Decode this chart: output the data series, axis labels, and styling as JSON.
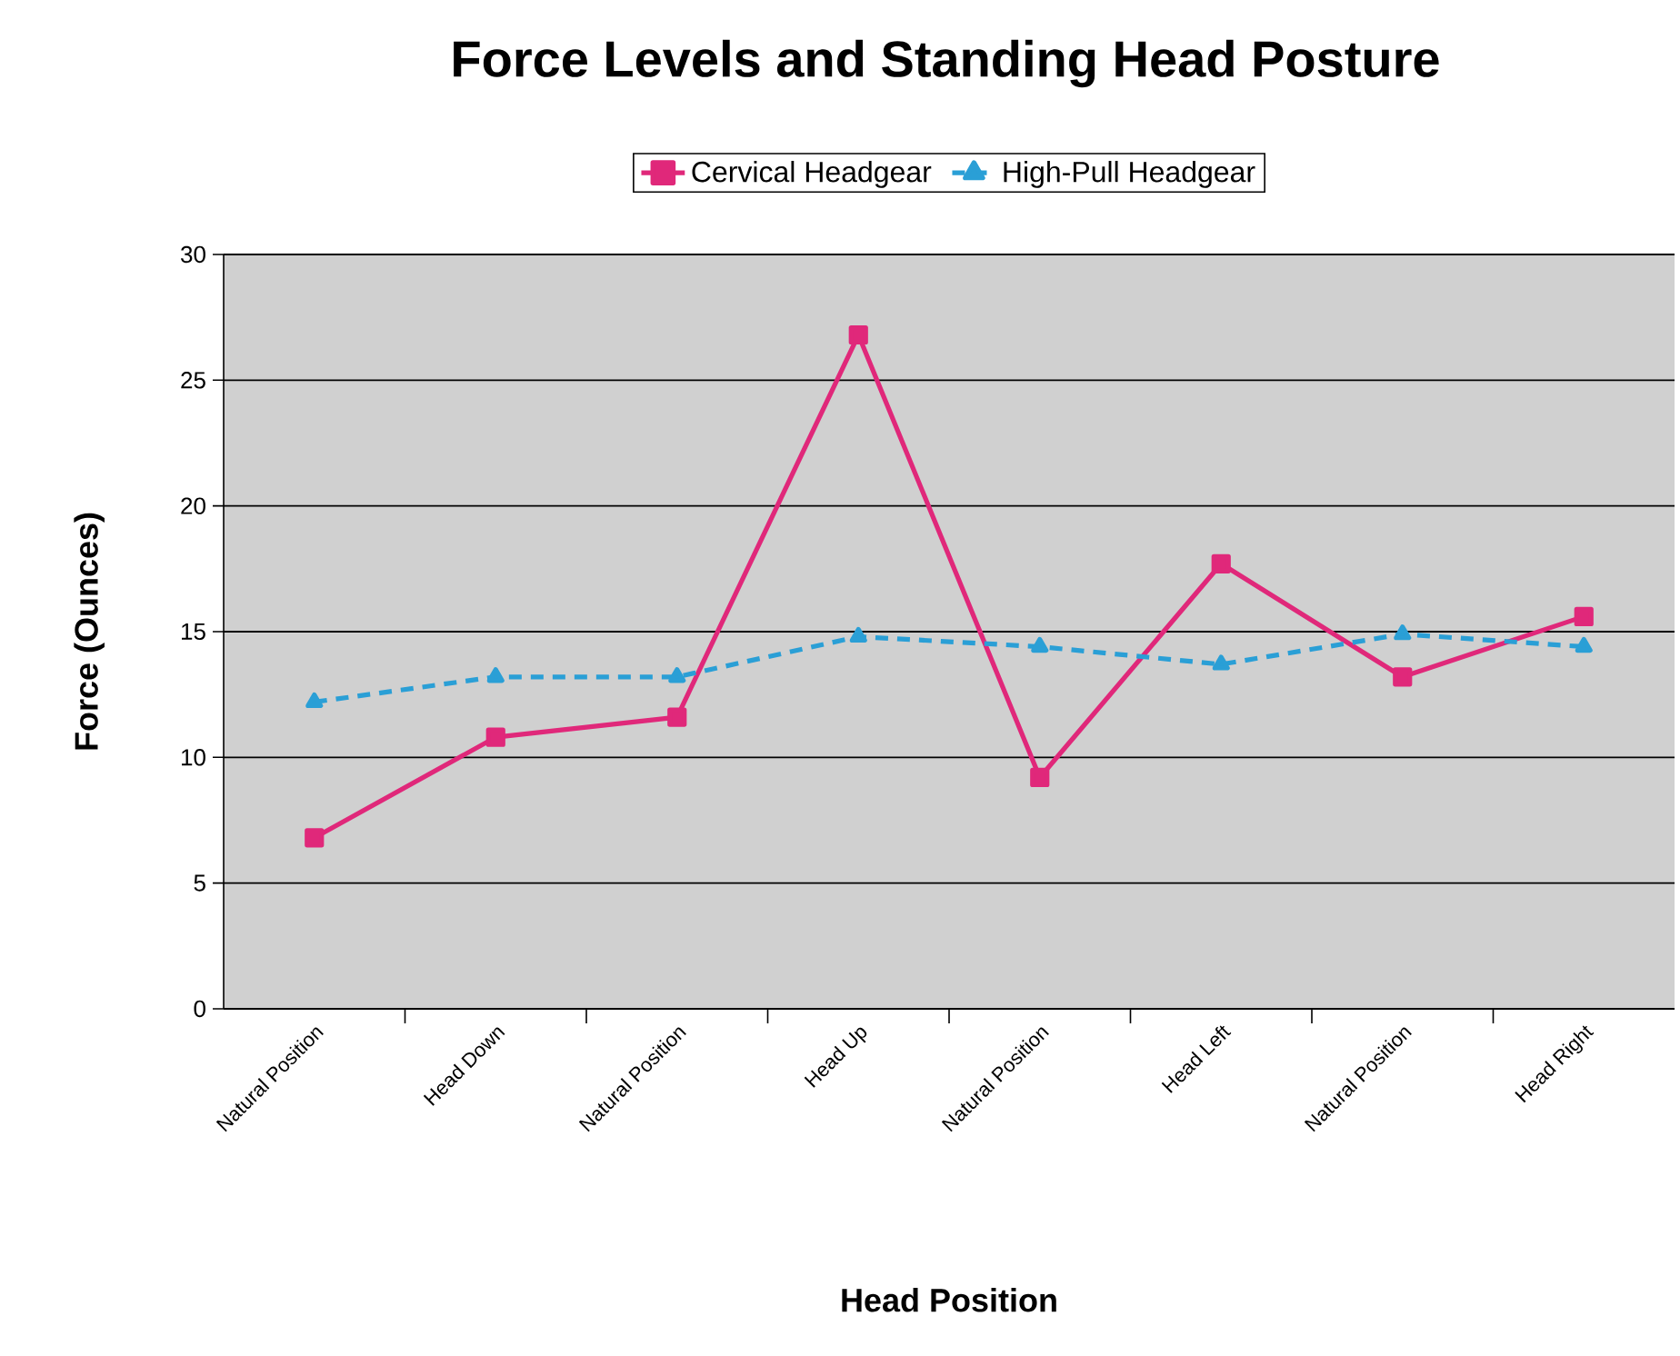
{
  "chart_data": {
    "type": "line",
    "title": "Force Levels and Standing Head Posture",
    "xlabel": "Head Position",
    "ylabel": "Force (Ounces)",
    "categories": [
      "Natural Position",
      "Head Down",
      "Natural Position",
      "Head Up",
      "Natural Position",
      "Head Left",
      "Natural Position",
      "Head Right"
    ],
    "series": [
      {
        "name": "Cervical Headgear",
        "color": "#e0287a",
        "marker": "square",
        "line_style": "solid",
        "values": [
          6.8,
          10.8,
          11.6,
          26.8,
          9.2,
          17.7,
          13.2,
          15.6
        ]
      },
      {
        "name": "High-Pull Headgear",
        "color": "#2a9fd6",
        "marker": "triangle",
        "line_style": "dashed",
        "values": [
          12.2,
          13.2,
          13.2,
          14.8,
          14.4,
          13.7,
          14.9,
          14.4
        ]
      }
    ],
    "ylim": [
      0,
      30
    ],
    "yticks": [
      0,
      5,
      10,
      15,
      20,
      25,
      30
    ],
    "grid": "y",
    "legend": "top"
  }
}
